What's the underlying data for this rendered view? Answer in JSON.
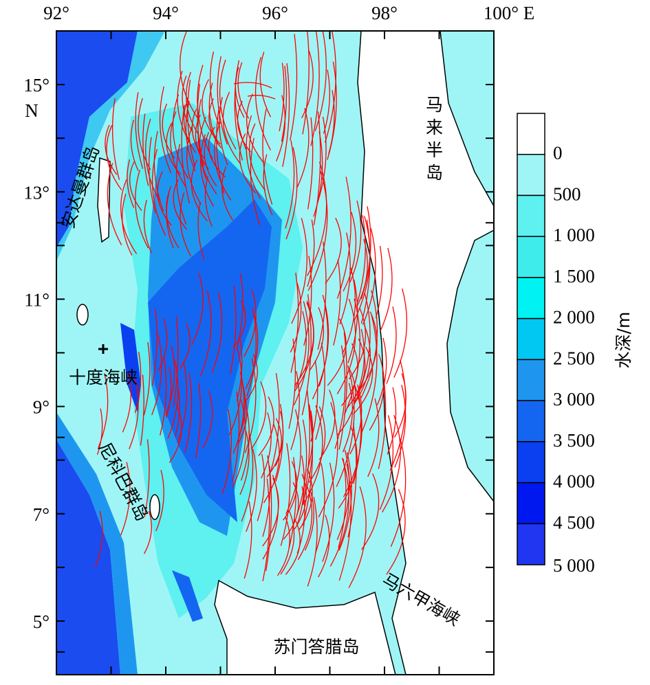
{
  "map": {
    "x_axis": {
      "range": [
        92,
        100
      ],
      "ticks": [
        {
          "value": 92,
          "label": "92°"
        },
        {
          "value": 94,
          "label": "94°"
        },
        {
          "value": 96,
          "label": "96°"
        },
        {
          "value": 98,
          "label": "98°"
        },
        {
          "value": 100,
          "label": "100° E"
        }
      ]
    },
    "y_axis": {
      "range": [
        4,
        16
      ],
      "unit_label": "N",
      "ticks": [
        {
          "value": 5,
          "label": "5°"
        },
        {
          "value": 7,
          "label": "7°"
        },
        {
          "value": 9,
          "label": "9°"
        },
        {
          "value": 11,
          "label": "11°"
        },
        {
          "value": 13,
          "label": "13°"
        },
        {
          "value": 15,
          "label": "15°"
        }
      ]
    },
    "places": [
      {
        "label": "安达曼群岛"
      },
      {
        "label": "十度海峡"
      },
      {
        "label": "尼科巴群岛"
      },
      {
        "label": "马来半岛"
      },
      {
        "label": "马六甲海峡"
      },
      {
        "label": "苏门答腊岛"
      }
    ],
    "legend": {
      "title": "水深/m",
      "colors": [
        "#ffffff",
        "#9ff5f5",
        "#5ff0f0",
        "#3eecec",
        "#00f2f2",
        "#00c8f2",
        "#1e96f0",
        "#1466f0",
        "#0a40f0",
        "#0018f0",
        "#2036f0"
      ],
      "labels": [
        "0",
        "500",
        "1 000",
        "1 500",
        "2 000",
        "2 500",
        "3 000",
        "3 500",
        "4 000",
        "4 500",
        "5 000"
      ]
    }
  }
}
